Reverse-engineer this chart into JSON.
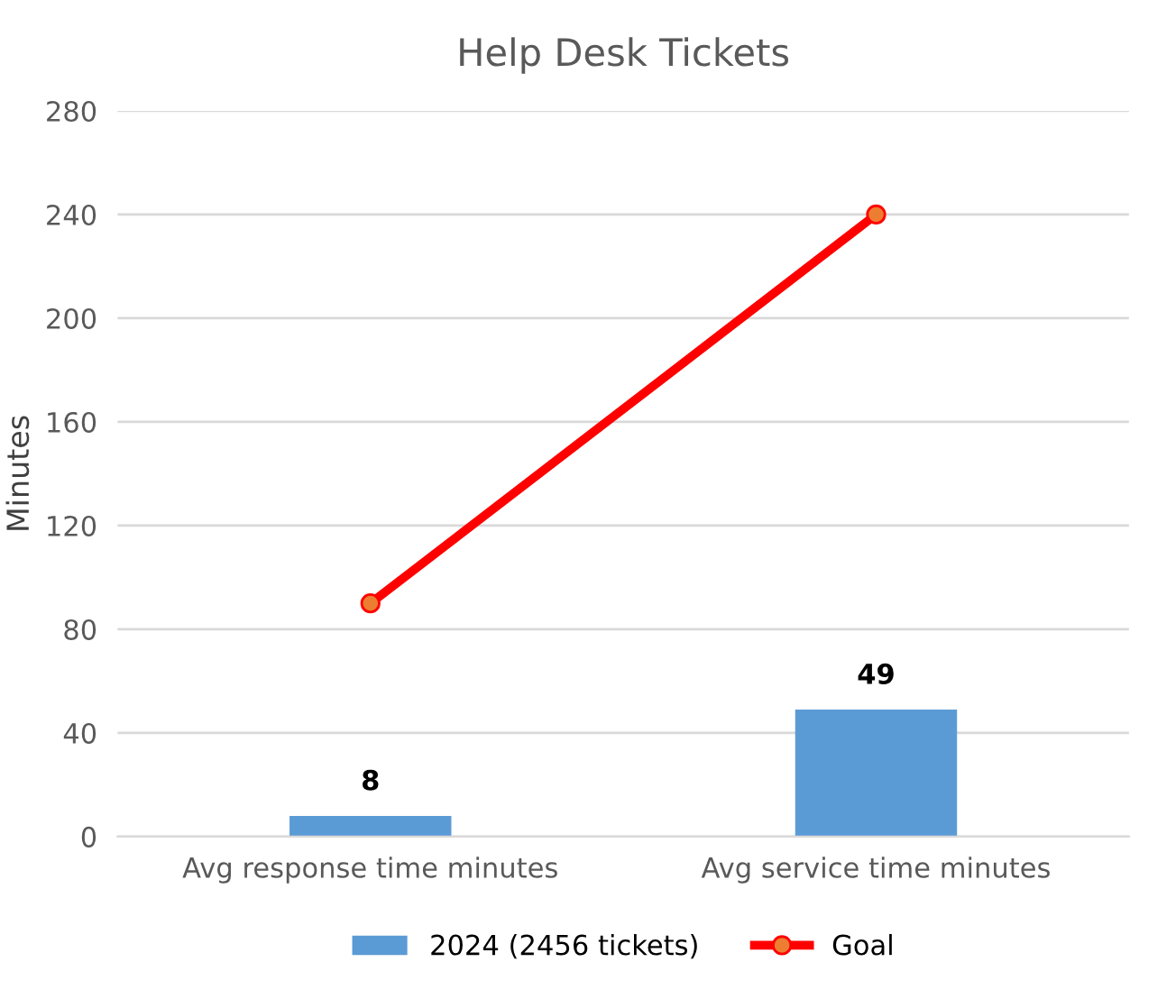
{
  "chart_data": {
    "type": "bar",
    "title": "Help Desk Tickets",
    "ylabel": "Minutes",
    "categories": [
      "Avg response time minutes",
      "Avg service time minutes"
    ],
    "series": [
      {
        "name": "2024 (2456 tickets)",
        "color": "#5b9bd5",
        "values": [
          8,
          49
        ],
        "value_labels": [
          "8",
          "49"
        ]
      },
      {
        "name": "Goal",
        "type": "line",
        "color": "#ff0000",
        "values": [
          90,
          240
        ],
        "marker": "circle"
      }
    ],
    "ylim": [
      0,
      280
    ],
    "yticks": [
      0,
      40,
      80,
      120,
      160,
      200,
      240,
      280
    ],
    "grid": "y",
    "legend": "bottom"
  }
}
